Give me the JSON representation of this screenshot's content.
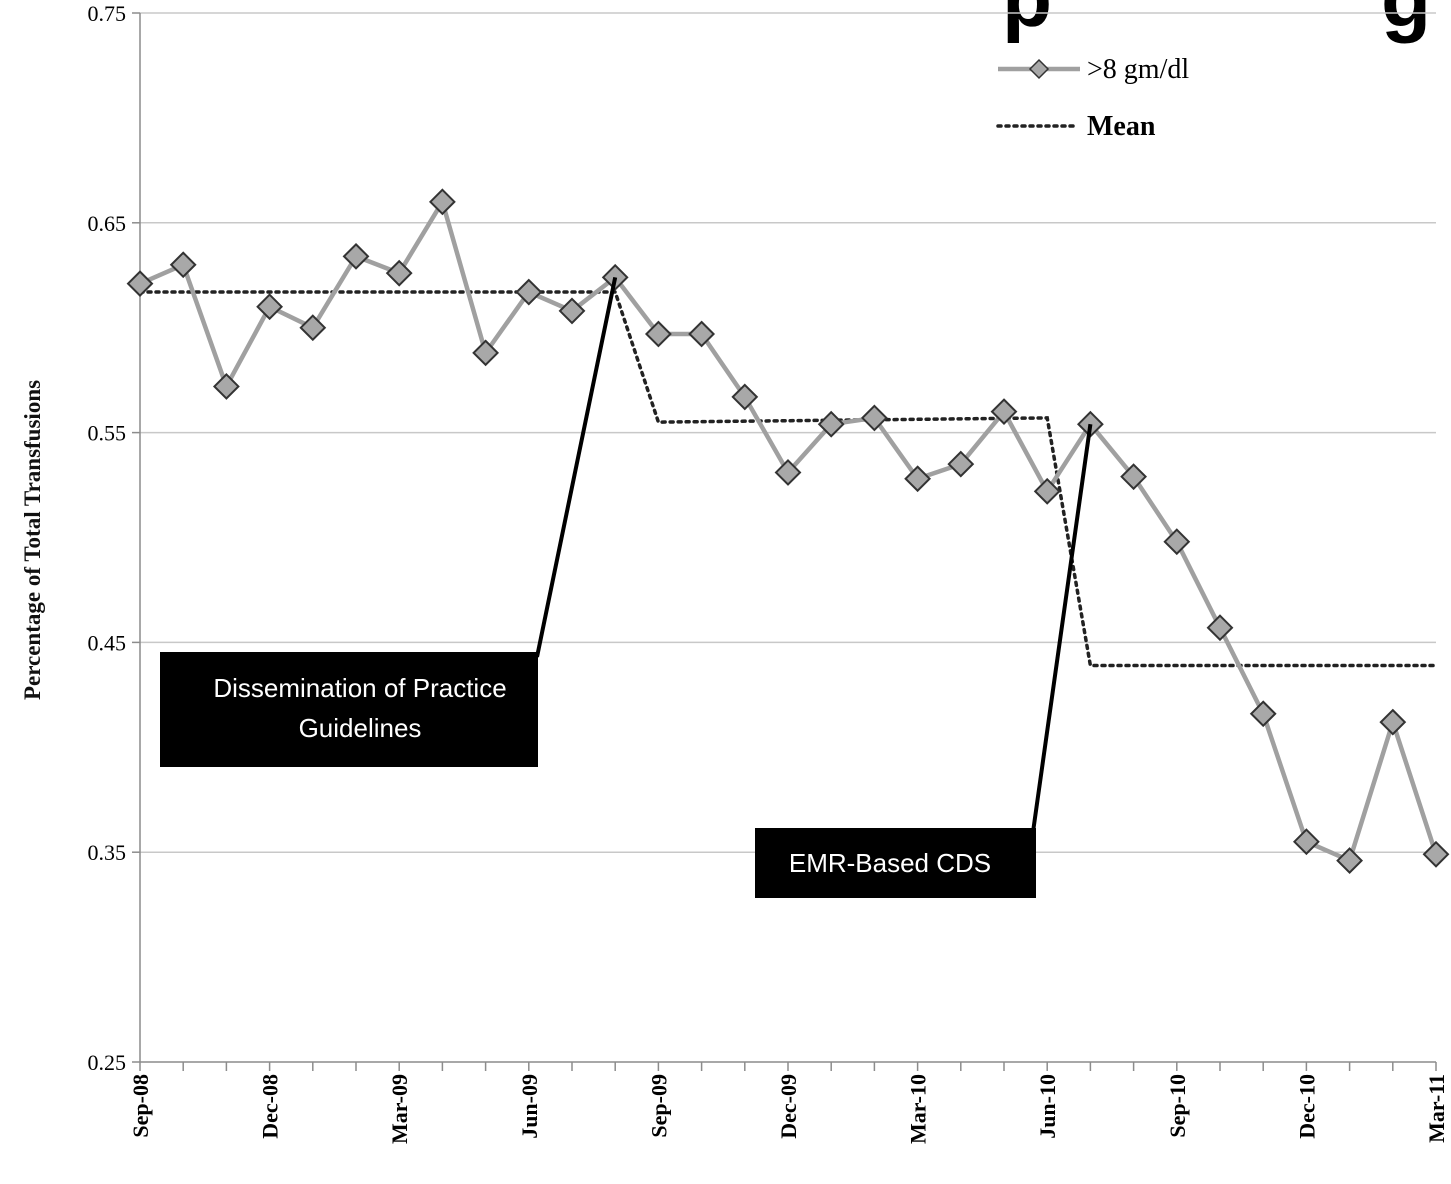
{
  "chart_data": {
    "type": "line",
    "title_fragment": "p",
    "title_fragment_right": "g",
    "ylabel": "Percentage of Total Transfusions",
    "ylim": [
      0.25,
      0.75
    ],
    "y_ticks": [
      "0.25",
      "0.35",
      "0.45",
      "0.55",
      "0.65",
      "0.75"
    ],
    "grid": true,
    "legend_position": "top-right",
    "x": [
      "Sep-08",
      "Oct-08",
      "Nov-08",
      "Dec-08",
      "Jan-09",
      "Feb-09",
      "Mar-09",
      "Apr-09",
      "May-09",
      "Jun-09",
      "Jul-09",
      "Aug-09",
      "Sep-09",
      "Oct-09",
      "Nov-09",
      "Dec-09",
      "Jan-10",
      "Feb-10",
      "Mar-10",
      "Apr-10",
      "May-10",
      "Jun-10",
      "Jul-10",
      "Aug-10",
      "Sep-10",
      "Oct-10",
      "Nov-10",
      "Dec-10",
      "Jan-11",
      "Feb-11",
      "Mar-11"
    ],
    "x_tick_labels": [
      {
        "index": 0,
        "label": "Sep-08"
      },
      {
        "index": 3,
        "label": "Dec-08"
      },
      {
        "index": 6,
        "label": "Mar-09"
      },
      {
        "index": 9,
        "label": "Jun-09"
      },
      {
        "index": 12,
        "label": "Sep-09"
      },
      {
        "index": 15,
        "label": "Dec-09"
      },
      {
        "index": 18,
        "label": "Mar-10"
      },
      {
        "index": 21,
        "label": "Jun-10"
      },
      {
        "index": 24,
        "label": "Sep-10"
      },
      {
        "index": 27,
        "label": "Dec-10"
      },
      {
        "index": 30,
        "label": "Mar-11"
      }
    ],
    "series": [
      {
        "name": ">8 gm/dl",
        "style": "solid-diamond",
        "color": "#a0a0a0",
        "marker_color": "#a8a8a8",
        "values": [
          0.621,
          0.63,
          0.572,
          0.61,
          0.6,
          0.634,
          0.626,
          0.66,
          0.588,
          0.617,
          0.608,
          0.624,
          0.597,
          0.597,
          0.567,
          0.531,
          0.554,
          0.557,
          0.528,
          0.535,
          0.56,
          0.522,
          0.554,
          0.529,
          0.498,
          0.457,
          0.416,
          0.355,
          0.346,
          0.412,
          0.349
        ]
      },
      {
        "name": "Mean",
        "style": "dotted",
        "color": "#222222",
        "points": [
          {
            "x": 0,
            "y": 0.617
          },
          {
            "x": 11,
            "y": 0.617
          },
          {
            "x": 12,
            "y": 0.555
          },
          {
            "x": 21,
            "y": 0.557
          },
          {
            "x": 22,
            "y": 0.439
          },
          {
            "x": 30,
            "y": 0.439
          }
        ]
      }
    ],
    "annotations": [
      {
        "text_lines": [
          "Dissemination of Practice",
          "Guidelines"
        ],
        "points_to_index": 11
      },
      {
        "text_lines": [
          "EMR-Based CDS"
        ],
        "points_to_index": 22
      }
    ]
  }
}
